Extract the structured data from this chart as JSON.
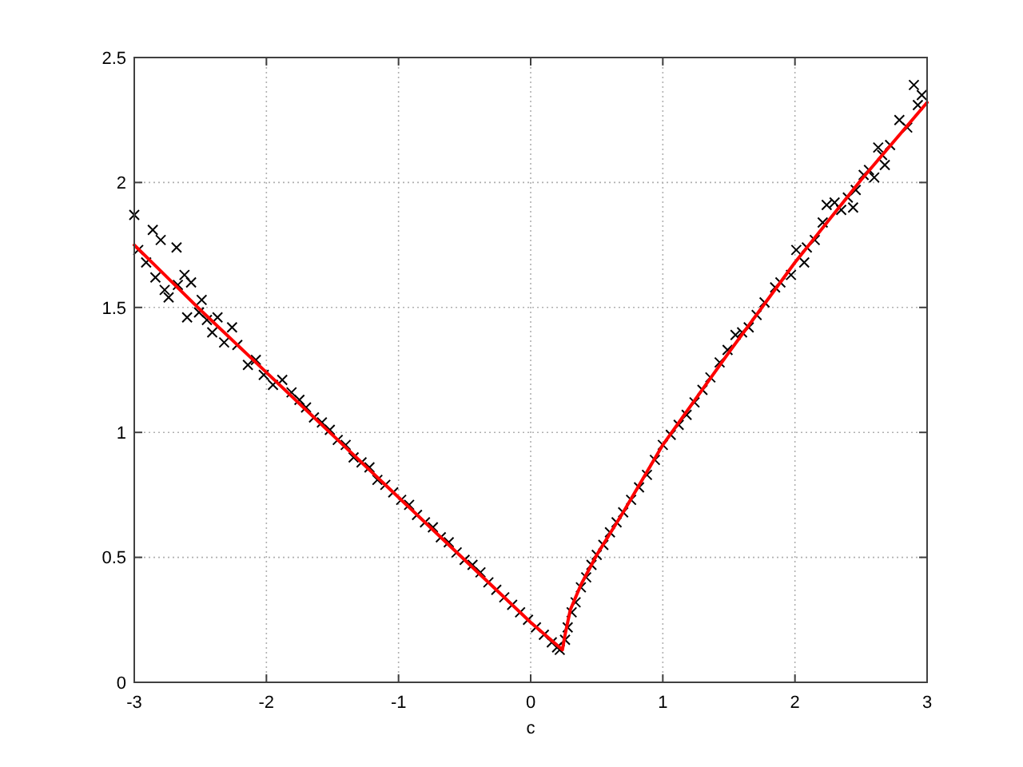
{
  "chart_data": {
    "type": "scatter",
    "xlabel": "c",
    "xlim": [
      -3,
      3
    ],
    "xticks": [
      -3,
      -2,
      -1,
      0,
      1,
      2,
      3
    ],
    "ylim": [
      0,
      2.5
    ],
    "yticks": [
      0,
      0.5,
      1,
      1.5,
      2,
      2.5
    ],
    "grid": true,
    "series": [
      {
        "color": "#000000",
        "marker": "cross",
        "x": [
          -3,
          -2.97,
          -2.91,
          -2.86,
          -2.84,
          -2.8,
          -2.77,
          -2.74,
          -2.68,
          -2.67,
          -2.62,
          -2.6,
          -2.57,
          -2.51,
          -2.49,
          -2.45,
          -2.41,
          -2.37,
          -2.32,
          -2.26,
          -2.22,
          -2.14,
          -2.08,
          -2.02,
          -1.95,
          -1.88,
          -1.81,
          -1.75,
          -1.7,
          -1.64,
          -1.58,
          -1.52,
          -1.46,
          -1.4,
          -1.34,
          -1.28,
          -1.22,
          -1.16,
          -1.1,
          -1.04,
          -0.98,
          -0.92,
          -0.86,
          -0.8,
          -0.74,
          -0.68,
          -0.62,
          -0.56,
          -0.5,
          -0.44,
          -0.38,
          -0.32,
          -0.26,
          -0.2,
          -0.14,
          -0.08,
          -0.02,
          0.04,
          0.1,
          0.16,
          0.2,
          0.22,
          0.26,
          0.28,
          0.31,
          0.34,
          0.38,
          0.42,
          0.46,
          0.5,
          0.55,
          0.6,
          0.65,
          0.7,
          0.76,
          0.82,
          0.88,
          0.94,
          1,
          1.06,
          1.12,
          1.18,
          1.24,
          1.3,
          1.36,
          1.43,
          1.49,
          1.55,
          1.6,
          1.65,
          1.71,
          1.77,
          1.85,
          1.89,
          1.97,
          2.01,
          2.07,
          2.09,
          2.15,
          2.21,
          2.24,
          2.3,
          2.35,
          2.4,
          2.44,
          2.46,
          2.52,
          2.56,
          2.6,
          2.63,
          2.66,
          2.68,
          2.72,
          2.79,
          2.85,
          2.9,
          2.93,
          2.96
        ],
        "values": [
          1.87,
          1.73,
          1.68,
          1.81,
          1.62,
          1.77,
          1.57,
          1.54,
          1.74,
          1.59,
          1.63,
          1.46,
          1.6,
          1.48,
          1.53,
          1.45,
          1.4,
          1.46,
          1.36,
          1.42,
          1.35,
          1.27,
          1.29,
          1.23,
          1.19,
          1.21,
          1.16,
          1.13,
          1.1,
          1.06,
          1.04,
          1.01,
          0.97,
          0.95,
          0.9,
          0.88,
          0.86,
          0.81,
          0.79,
          0.76,
          0.73,
          0.71,
          0.67,
          0.64,
          0.62,
          0.58,
          0.56,
          0.52,
          0.49,
          0.47,
          0.44,
          0.4,
          0.37,
          0.34,
          0.31,
          0.28,
          0.25,
          0.22,
          0.19,
          0.16,
          0.14,
          0.13,
          0.17,
          0.22,
          0.28,
          0.32,
          0.38,
          0.42,
          0.47,
          0.51,
          0.55,
          0.6,
          0.64,
          0.68,
          0.73,
          0.78,
          0.83,
          0.89,
          0.95,
          0.99,
          1.03,
          1.07,
          1.12,
          1.17,
          1.22,
          1.28,
          1.33,
          1.39,
          1.4,
          1.42,
          1.47,
          1.52,
          1.58,
          1.6,
          1.63,
          1.73,
          1.68,
          1.74,
          1.77,
          1.84,
          1.91,
          1.92,
          1.89,
          1.94,
          1.9,
          1.97,
          2.03,
          2.05,
          2.02,
          2.14,
          2.11,
          2.07,
          2.15,
          2.25,
          2.22,
          2.39,
          2.31,
          2.35
        ]
      },
      {
        "type": "line",
        "color": "#ff0000",
        "line_style": "solid",
        "x": [
          -3,
          -2.5,
          -2,
          -1.5,
          -1,
          -0.5,
          0,
          0.24,
          0.26,
          0.3,
          0.38,
          0.5,
          0.7,
          1,
          1.5,
          2,
          2.5,
          3
        ],
        "values": [
          1.75,
          1.49,
          1.24,
          0.99,
          0.74,
          0.49,
          0.24,
          0.13,
          0.19,
          0.29,
          0.39,
          0.51,
          0.68,
          0.95,
          1.32,
          1.68,
          2.01,
          2.32
        ]
      }
    ]
  }
}
